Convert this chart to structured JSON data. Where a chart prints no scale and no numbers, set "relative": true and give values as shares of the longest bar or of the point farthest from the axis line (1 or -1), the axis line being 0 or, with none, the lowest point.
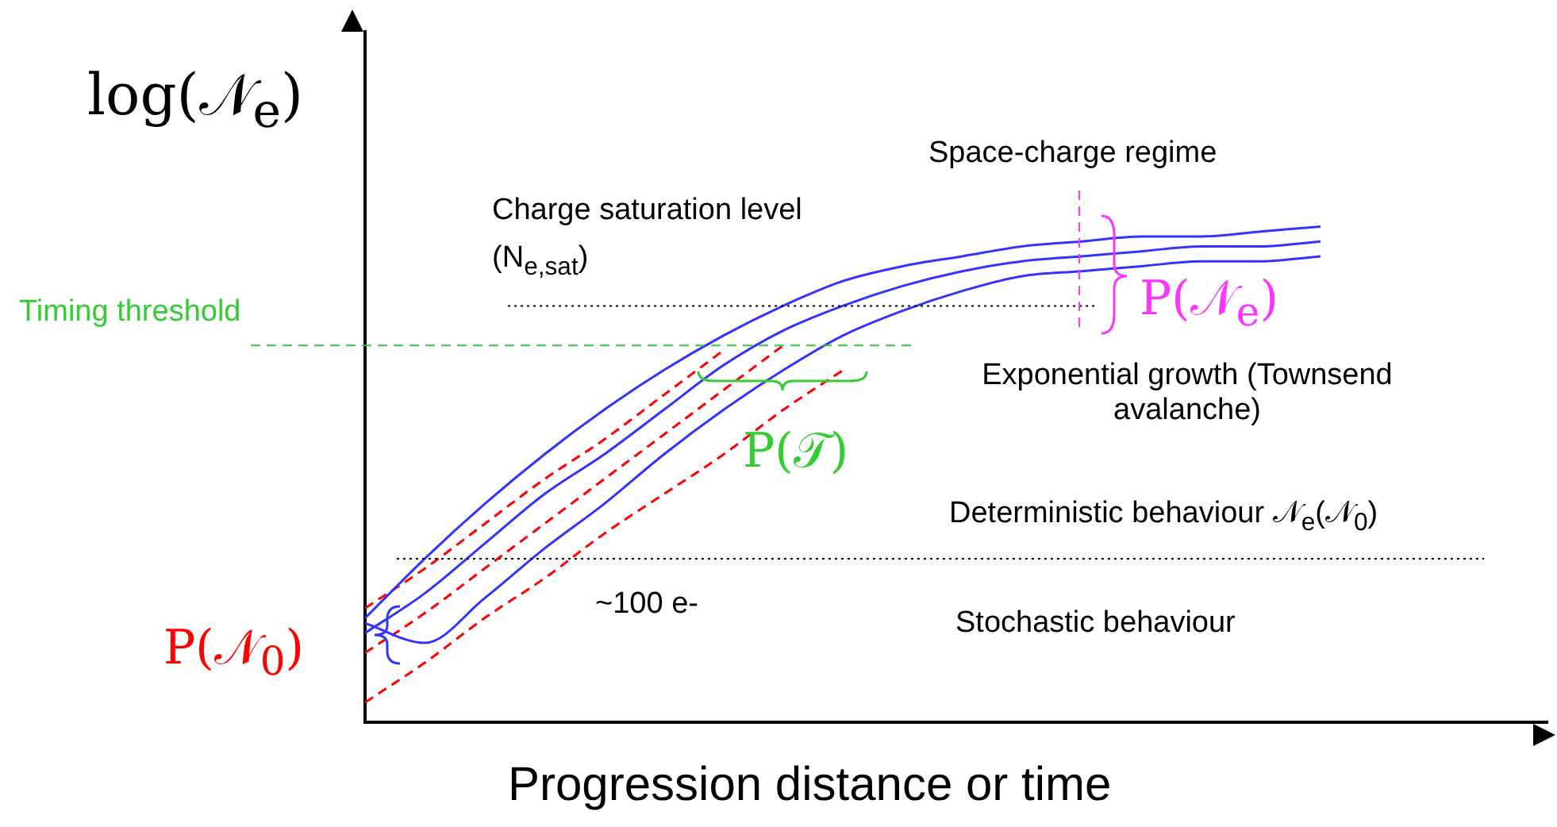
{
  "chart_data": {
    "type": "line",
    "relative": true,
    "xlabel": "Progression distance or time",
    "ylabel": "log(𝒩$_{e}$)",
    "categories": [
      null,
      null,
      null,
      null,
      null,
      null,
      null,
      null,
      null,
      null,
      null,
      null,
      null,
      null,
      null,
      null,
      null
    ],
    "series": [
      {
        "color": "#3333ff",
        "line_style": "solid",
        "values": [
          0.21,
          0.33,
          0.44,
          0.54,
          0.63,
          0.71,
          0.78,
          0.84,
          0.89,
          0.92,
          0.94,
          0.96,
          0.97,
          0.98,
          0.98,
          0.99,
          1
        ]
      },
      {
        "color": "#3333ff",
        "line_style": "solid",
        "values": [
          0.18,
          0.26,
          0.36,
          0.46,
          0.54,
          0.63,
          0.72,
          0.79,
          0.84,
          0.88,
          0.91,
          0.93,
          0.94,
          0.95,
          0.96,
          0.96,
          0.97
        ]
      },
      {
        "color": "#3333ff",
        "line_style": "solid",
        "values": [
          0.2,
          0.16,
          0.25,
          0.35,
          0.44,
          0.54,
          0.63,
          0.71,
          0.78,
          0.83,
          0.87,
          0.9,
          0.91,
          0.92,
          0.93,
          0.93,
          0.94
        ]
      },
      {
        "color": "#ff0000",
        "line_style": "dashed",
        "values": [
          0.23,
          0.31,
          0.4,
          0.49,
          0.57,
          0.66,
          0.75,
          null,
          null,
          null,
          null,
          null,
          null,
          null,
          null,
          null,
          null
        ]
      },
      {
        "color": "#ff0000",
        "line_style": "dashed",
        "values": [
          0.14,
          0.22,
          0.31,
          0.4,
          0.49,
          0.58,
          0.67,
          0.76,
          null,
          null,
          null,
          null,
          null,
          null,
          null,
          null,
          null
        ]
      },
      {
        "color": "#ff0000",
        "line_style": "dashed",
        "values": [
          0.04,
          0.12,
          0.21,
          0.29,
          0.38,
          0.46,
          0.54,
          0.63,
          0.71,
          null,
          null,
          null,
          null,
          null,
          null,
          null,
          null
        ]
      }
    ],
    "ref_lines": [
      {
        "axis": "y",
        "value": 0.76,
        "label": "Timing threshold",
        "color": "#33cc33",
        "line_style": "dashed"
      },
      {
        "axis": "y",
        "value": 0.84,
        "label": "Charge saturation level (N$_{e,sat}$)",
        "color": "#000000",
        "line_style": "dotted"
      },
      {
        "axis": "y",
        "value": 0.33,
        "label": "Deterministic behaviour 𝒩$_{e}$(𝒩$_{0}$)",
        "color": "#000000",
        "line_style": "dotted"
      }
    ],
    "annotations": [
      "Space-charge regime",
      "P(𝒩$_{e}$)",
      "Exponential growth (Townsend avalanche)",
      "P(𝒯)",
      "~100 e-",
      "Stochastic behaviour",
      "P(𝒩$_{0}$)"
    ],
    "legend": false,
    "grid": false,
    "marker": "none"
  }
}
